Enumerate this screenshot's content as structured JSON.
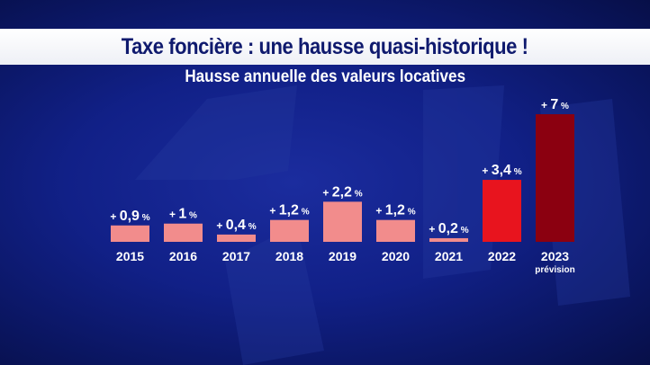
{
  "header": {
    "title": "Taxe foncière : une hausse quasi-historique !",
    "subtitle": "Hausse annuelle des valeurs locatives"
  },
  "colors": {
    "bar_normal": "#f28c8c",
    "bar_2022": "#e8141e",
    "bar_2023": "#8b0010",
    "title_text": "#0f1a6e"
  },
  "chart_data": {
    "type": "bar",
    "title": "Hausse annuelle des valeurs locatives",
    "categories": [
      "2015",
      "2016",
      "2017",
      "2018",
      "2019",
      "2020",
      "2021",
      "2022",
      "2023"
    ],
    "category_notes": [
      "",
      "",
      "",
      "",
      "",
      "",
      "",
      "",
      "prévision"
    ],
    "values": [
      0.9,
      1,
      0.4,
      1.2,
      2.2,
      1.2,
      0.2,
      3.4,
      7
    ],
    "value_labels": [
      "0,9",
      "1",
      "0,4",
      "1,2",
      "2,2",
      "1,2",
      "0,2",
      "3,4",
      "7"
    ],
    "label_prefix": "+",
    "label_suffix": "%",
    "xlabel": "",
    "ylabel": "",
    "ylim": [
      0,
      7.2
    ],
    "grid": false,
    "legend": "none"
  }
}
